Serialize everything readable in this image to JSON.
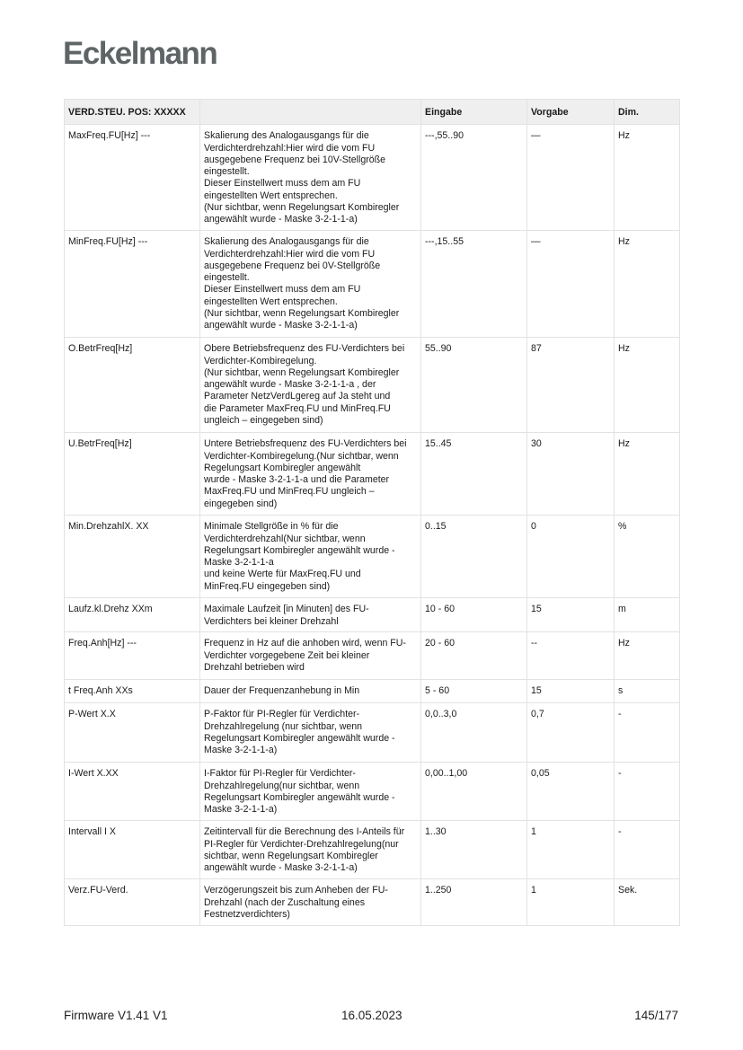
{
  "logo": "Eckelmann",
  "table": {
    "headers": [
      "VERD.STEU. POS: XXXXX",
      "",
      "Eingabe",
      "Vorgabe",
      "Dim."
    ],
    "rows": [
      {
        "param": "MaxFreq.FU[Hz] ---",
        "desc": "Skalierung des Analogausgangs für die\nVerdichterdrehzahl:Hier wird die vom FU\nausgegebene Frequenz bei 10V-Stellgröße\neingestellt.\nDieser Einstellwert muss dem am FU\neingestellten Wert entsprechen.\n(Nur sichtbar, wenn Regelungsart Kombiregler\nangewählt wurde - Maske 3-2-1-1-a)",
        "eingabe": "---,55..90",
        "vorgabe": "—",
        "dim": "Hz"
      },
      {
        "param": "MinFreq.FU[Hz] ---",
        "desc": "Skalierung des Analogausgangs für die\nVerdichterdrehzahl:Hier wird die vom FU\nausgegebene Frequenz bei 0V-Stellgröße\neingestellt.\nDieser Einstellwert muss dem am FU\neingestellten Wert entsprechen.\n(Nur sichtbar, wenn Regelungsart Kombiregler\nangewählt wurde - Maske 3-2-1-1-a)",
        "eingabe": "---,15..55",
        "vorgabe": "—",
        "dim": "Hz"
      },
      {
        "param": "O.BetrFreq[Hz]",
        "desc": "Obere Betriebsfrequenz des FU-Verdichters bei\nVerdichter-Kombiregelung.\n(Nur sichtbar, wenn Regelungsart Kombiregler\nangewählt wurde - Maske 3-2-1-1-a , der\nParameter NetzVerdLgereg auf Ja steht und\ndie Parameter MaxFreq.FU und MinFreq.FU\nungleich – eingegeben sind)",
        "eingabe": "55..90",
        "vorgabe": "87",
        "dim": "Hz"
      },
      {
        "param": "U.BetrFreq[Hz]",
        "desc": "Untere Betriebsfrequenz des FU-Verdichters bei\nVerdichter-Kombiregelung.(Nur sichtbar, wenn\nRegelungsart Kombiregler angewählt\nwurde - Maske 3-2-1-1-a und die Parameter\nMaxFreq.FU und MinFreq.FU ungleich –\neingegeben sind)",
        "eingabe": "15..45",
        "vorgabe": "30",
        "dim": "Hz"
      },
      {
        "param": "Min.DrehzahlX. XX",
        "desc": "Minimale Stellgröße in % für die\nVerdichterdrehzahl(Nur sichtbar, wenn\nRegelungsart Kombiregler angewählt wurde -\nMaske 3-2-1-1-a\nund keine Werte für MaxFreq.FU und\nMinFreq.FU eingegeben sind)",
        "eingabe": "0..15",
        "vorgabe": "0",
        "dim": "%"
      },
      {
        "param": "Laufz.kl.Drehz XXm",
        "desc": "Maximale Laufzeit [in Minuten] des FU-\nVerdichters bei kleiner Drehzahl",
        "eingabe": "10 - 60",
        "vorgabe": "15",
        "dim": "m"
      },
      {
        "param": "Freq.Anh[Hz] ---",
        "desc": "Frequenz in Hz auf die anhoben wird, wenn FU-\nVerdichter vorgegebene Zeit bei kleiner\nDrehzahl betrieben wird",
        "eingabe": "20 - 60",
        "vorgabe": "--",
        "dim": "Hz"
      },
      {
        "param": "t Freq.Anh XXs",
        "desc": "Dauer der Frequenzanhebung in Min",
        "eingabe": "5 - 60",
        "vorgabe": "15",
        "dim": "s"
      },
      {
        "param": "P-Wert X.X",
        "desc": "P-Faktor für PI-Regler für Verdichter-\nDrehzahlregelung (nur sichtbar, wenn\nRegelungsart Kombiregler angewählt wurde -\nMaske 3-2-1-1-a)",
        "eingabe": "0,0..3,0",
        "vorgabe": "0,7",
        "dim": " -"
      },
      {
        "param": "I-Wert X.XX",
        "desc": "I-Faktor für PI-Regler für Verdichter-\nDrehzahlregelung(nur sichtbar, wenn\nRegelungsart Kombiregler angewählt wurde -\nMaske 3-2-1-1-a)",
        "eingabe": "0,00..1,00",
        "vorgabe": "0,05",
        "dim": "-"
      },
      {
        "param": "Intervall I X",
        "desc": "Zeitintervall für die Berechnung des I-Anteils für\nPI-Regler für Verdichter-Drehzahlregelung(nur\nsichtbar, wenn Regelungsart Kombiregler\nangewählt wurde - Maske 3-2-1-1-a)",
        "eingabe": "1..30",
        "vorgabe": "1",
        "dim": "-"
      },
      {
        "param": "Verz.FU-Verd.",
        "desc": "Verzögerungszeit bis zum Anheben der FU-\nDrehzahl (nach der Zuschaltung eines\nFestnetzverdichters)",
        "eingabe": "1..250",
        "vorgabe": "1",
        "dim": "Sek."
      }
    ]
  },
  "footer": {
    "firmware": "Firmware V1.41 V1",
    "date": "16.05.2023",
    "page": "145/177"
  }
}
